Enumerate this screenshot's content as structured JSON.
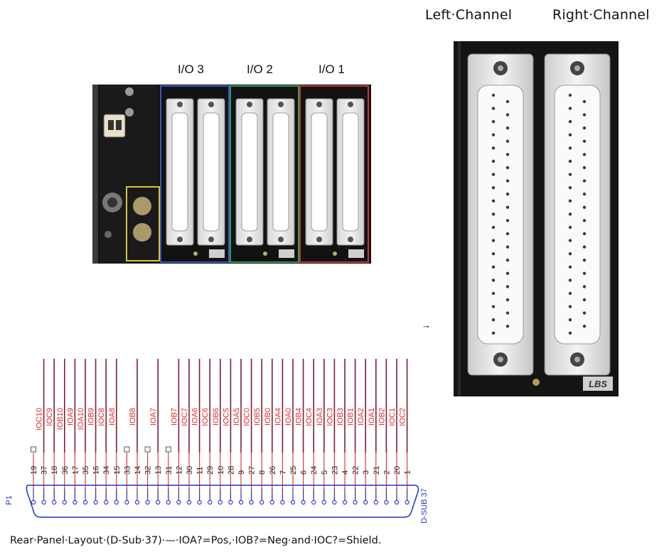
{
  "rear_photo": {
    "io_labels": [
      "I/O 3",
      "I/O 2",
      "I/O 1"
    ],
    "io_colors": [
      "#3a55c8",
      "#2f9a56",
      "#c8353a"
    ]
  },
  "closeup": {
    "channel_labels": [
      "Left·Channel",
      "Right·Channel"
    ],
    "logo_text": "LBS"
  },
  "pinout": {
    "part_ref": "P1",
    "connector": "D-SUB 37",
    "pins": [
      {
        "num": "19",
        "signal": ""
      },
      {
        "num": "37",
        "signal": "IOC10"
      },
      {
        "num": "18",
        "signal": "IOC9"
      },
      {
        "num": "36",
        "signal": "IOB10"
      },
      {
        "num": "17",
        "signal": "IOA9"
      },
      {
        "num": "35",
        "signal": "IOA10"
      },
      {
        "num": "16",
        "signal": "IOB9"
      },
      {
        "num": "34",
        "signal": "IOC8"
      },
      {
        "num": "15",
        "signal": "IOA8"
      },
      {
        "num": "33",
        "signal": ""
      },
      {
        "num": "14",
        "signal": "IOB8"
      },
      {
        "num": "32",
        "signal": ""
      },
      {
        "num": "13",
        "signal": "IOA7"
      },
      {
        "num": "31",
        "signal": ""
      },
      {
        "num": "12",
        "signal": "IOB7"
      },
      {
        "num": "30",
        "signal": "IOC7"
      },
      {
        "num": "11",
        "signal": "IOA6"
      },
      {
        "num": "29",
        "signal": "IOC6"
      },
      {
        "num": "10",
        "signal": "IOB6"
      },
      {
        "num": "28",
        "signal": "IOC5"
      },
      {
        "num": "9",
        "signal": "IOA5"
      },
      {
        "num": "27",
        "signal": "IOC0"
      },
      {
        "num": "8",
        "signal": "IOB5"
      },
      {
        "num": "26",
        "signal": "IOB0"
      },
      {
        "num": "7",
        "signal": "IOA4"
      },
      {
        "num": "25",
        "signal": "IOA0"
      },
      {
        "num": "6",
        "signal": "IOB4"
      },
      {
        "num": "24",
        "signal": "IOC4"
      },
      {
        "num": "5",
        "signal": "IOA3"
      },
      {
        "num": "23",
        "signal": "IOC3"
      },
      {
        "num": "4",
        "signal": "IOB3"
      },
      {
        "num": "22",
        "signal": "IOB1"
      },
      {
        "num": "3",
        "signal": "IOA2"
      },
      {
        "num": "21",
        "signal": "IOA1"
      },
      {
        "num": "2",
        "signal": "IOB2"
      },
      {
        "num": "20",
        "signal": "IOC1"
      },
      {
        "num": "1",
        "signal": "IOC2"
      }
    ]
  },
  "caption": "Rear·Panel·Layout·(D-Sub·37)·—·IOA?=Pos,·IOB?=Neg·and·IOC?=Shield.",
  "colors": {
    "signal_red": "#e02a2a",
    "wire_maroon": "#7a1f3a",
    "connector_blue": "#2431c8"
  }
}
